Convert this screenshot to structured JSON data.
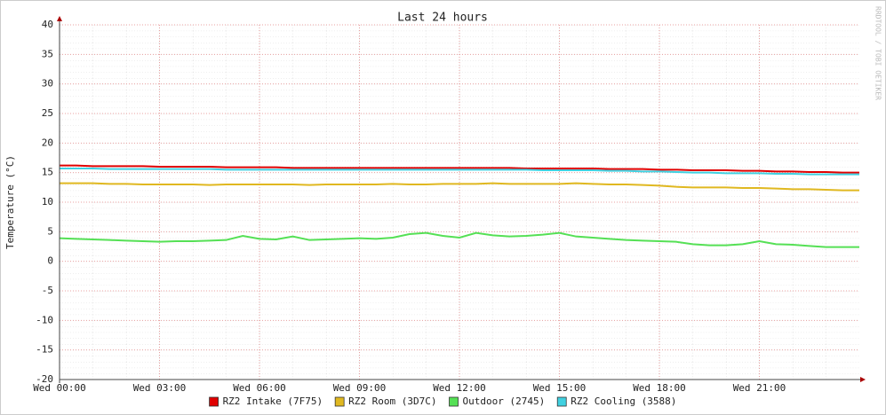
{
  "chart_data": {
    "type": "line",
    "title": "Last 24 hours",
    "y_label": "Temperature (°C)",
    "watermark": "RRDTOOL / TOBI OETIKER",
    "x": [
      0,
      0.5,
      1,
      1.5,
      2,
      2.5,
      3,
      3.5,
      4,
      4.5,
      5,
      5.5,
      6,
      6.5,
      7,
      7.5,
      8,
      8.5,
      9,
      9.5,
      10,
      10.5,
      11,
      11.5,
      12,
      12.5,
      13,
      13.5,
      14,
      14.5,
      15,
      15.5,
      16,
      16.5,
      17,
      17.5,
      18,
      18.5,
      19,
      19.5,
      20,
      20.5,
      21,
      21.5,
      22,
      22.5,
      23,
      23.5,
      24
    ],
    "xlim": [
      0,
      24
    ],
    "xticks": [
      {
        "value": 0,
        "label": "Wed 00:00"
      },
      {
        "value": 3,
        "label": "Wed 03:00"
      },
      {
        "value": 6,
        "label": "Wed 06:00"
      },
      {
        "value": 9,
        "label": "Wed 09:00"
      },
      {
        "value": 12,
        "label": "Wed 12:00"
      },
      {
        "value": 15,
        "label": "Wed 15:00"
      },
      {
        "value": 18,
        "label": "Wed 18:00"
      },
      {
        "value": 21,
        "label": "Wed 21:00"
      }
    ],
    "ylim": [
      -20,
      40
    ],
    "yticks": [
      -20,
      -15,
      -10,
      -5,
      0,
      5,
      10,
      15,
      20,
      25,
      30,
      35,
      40
    ],
    "grid": true,
    "series": [
      {
        "name": "RZ2 Intake (7F75)",
        "color": "#e00000",
        "values": [
          16.2,
          16.2,
          16.1,
          16.1,
          16.1,
          16.1,
          16.0,
          16.0,
          16.0,
          16.0,
          15.9,
          15.9,
          15.9,
          15.9,
          15.8,
          15.8,
          15.8,
          15.8,
          15.8,
          15.8,
          15.8,
          15.8,
          15.8,
          15.8,
          15.8,
          15.8,
          15.8,
          15.8,
          15.7,
          15.7,
          15.7,
          15.7,
          15.7,
          15.6,
          15.6,
          15.6,
          15.5,
          15.5,
          15.4,
          15.4,
          15.4,
          15.3,
          15.3,
          15.2,
          15.2,
          15.1,
          15.1,
          15.0,
          15.0
        ]
      },
      {
        "name": "RZ2 Room (3D7C)",
        "color": "#e0b820",
        "values": [
          13.2,
          13.2,
          13.2,
          13.1,
          13.1,
          13.0,
          13.0,
          13.0,
          13.0,
          12.9,
          13.0,
          13.0,
          13.0,
          13.0,
          13.0,
          12.9,
          13.0,
          13.0,
          13.0,
          13.0,
          13.1,
          13.0,
          13.0,
          13.1,
          13.1,
          13.1,
          13.2,
          13.1,
          13.1,
          13.1,
          13.1,
          13.2,
          13.1,
          13.0,
          13.0,
          12.9,
          12.8,
          12.6,
          12.5,
          12.5,
          12.5,
          12.4,
          12.4,
          12.3,
          12.2,
          12.2,
          12.1,
          12.0,
          12.0
        ]
      },
      {
        "name": "Outdoor (2745)",
        "color": "#55e055",
        "values": [
          3.9,
          3.8,
          3.7,
          3.6,
          3.5,
          3.4,
          3.3,
          3.4,
          3.4,
          3.5,
          3.6,
          4.3,
          3.8,
          3.7,
          4.2,
          3.6,
          3.7,
          3.8,
          3.9,
          3.8,
          4.0,
          4.6,
          4.8,
          4.3,
          4.0,
          4.8,
          4.4,
          4.2,
          4.3,
          4.5,
          4.8,
          4.2,
          4.0,
          3.8,
          3.6,
          3.5,
          3.4,
          3.3,
          2.9,
          2.7,
          2.7,
          2.9,
          3.4,
          2.9,
          2.8,
          2.6,
          2.4,
          2.4,
          2.4
        ]
      },
      {
        "name": "RZ2 Cooling (3588)",
        "color": "#40d0e0",
        "values": [
          15.7,
          15.7,
          15.7,
          15.6,
          15.6,
          15.6,
          15.6,
          15.6,
          15.6,
          15.6,
          15.5,
          15.5,
          15.5,
          15.5,
          15.5,
          15.5,
          15.5,
          15.5,
          15.5,
          15.5,
          15.5,
          15.5,
          15.5,
          15.5,
          15.5,
          15.5,
          15.5,
          15.5,
          15.5,
          15.4,
          15.4,
          15.4,
          15.4,
          15.3,
          15.3,
          15.2,
          15.2,
          15.1,
          15.0,
          15.0,
          14.9,
          14.9,
          14.9,
          14.8,
          14.8,
          14.7,
          14.7,
          14.7,
          14.7
        ]
      }
    ]
  }
}
